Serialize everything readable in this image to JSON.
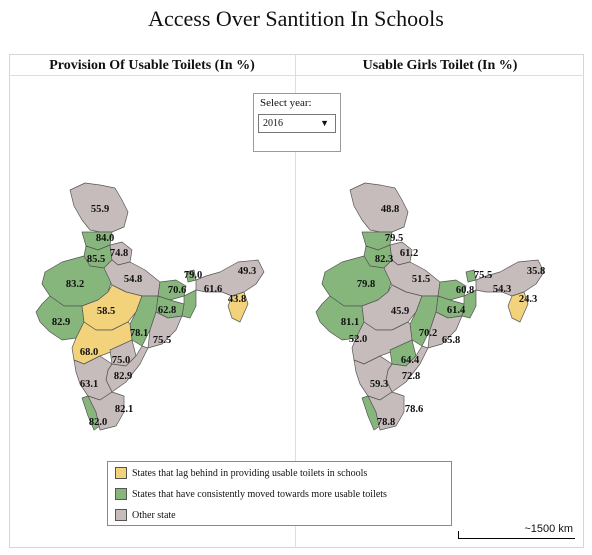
{
  "title": "Access Over Santition In Schools",
  "colors": {
    "lag": "#f3d27c",
    "moved": "#86b67c",
    "other": "#c7bcbc",
    "border": "#555555"
  },
  "selector": {
    "label": "Select year:",
    "value": "2016"
  },
  "panels": [
    {
      "title": "Provision Of Usable Toilets (In %)",
      "labels": [
        "55.9",
        "84.0",
        "85.5",
        "74.8",
        "83.2",
        "54.8",
        "79.0",
        "49.3",
        "70.6",
        "61.6",
        "58.5",
        "62.8",
        "43.8",
        "82.9",
        "78.1",
        "75.5",
        "68.0",
        "75.0",
        "82.9",
        "63.1",
        "82.1",
        "82.0"
      ]
    },
    {
      "title": "Usable Girls Toilet (In %)",
      "labels": [
        "48.8",
        "79.5",
        "82.3",
        "61.2",
        "79.8",
        "51.5",
        "75.5",
        "35.8",
        "60.8",
        "54.3",
        "45.9",
        "61.4",
        "24.3",
        "81.1",
        "52.0",
        "70.2",
        "65.8",
        "64.4",
        "72.8",
        "59.3",
        "78.6",
        "78.8"
      ]
    }
  ],
  "legend": [
    {
      "label": "States that lag behind in providing usable toilets in schools",
      "category": "lag"
    },
    {
      "label": "States that have consistently moved towards more usable toilets",
      "category": "moved"
    },
    {
      "label": "Other state",
      "category": "other"
    }
  ],
  "scale_bar": "~1500 km"
}
